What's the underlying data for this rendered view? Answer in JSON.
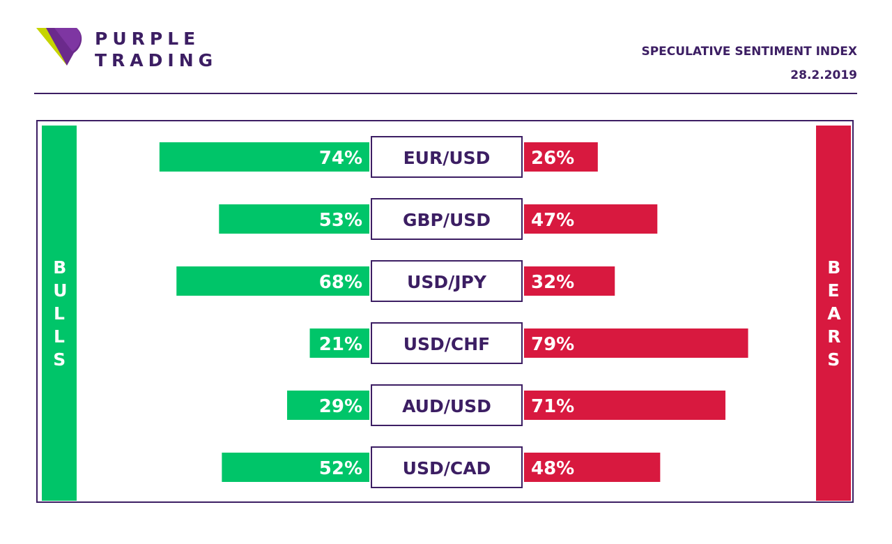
{
  "brand": {
    "line1": "PURPLE",
    "line2": "TRADING",
    "logo_icon": "purple-trading-logo-icon"
  },
  "header": {
    "title": "SPECULATIVE SENTIMENT INDEX",
    "date": "28.2.2019"
  },
  "side_labels": {
    "bulls": "BULLS",
    "bears": "BEARS"
  },
  "colors": {
    "bulls": "#00c569",
    "bears": "#d8193f",
    "accent": "#3c1e63"
  },
  "chart_data": {
    "type": "bar",
    "categories": [
      "EUR/USD",
      "GBP/USD",
      "USD/JPY",
      "USD/CHF",
      "AUD/USD",
      "USD/CAD"
    ],
    "series": [
      {
        "name": "BULLS",
        "values": [
          74,
          53,
          68,
          21,
          29,
          52
        ],
        "labels": [
          "74%",
          "53%",
          "68%",
          "21%",
          "29%",
          "52%"
        ]
      },
      {
        "name": "BEARS",
        "values": [
          26,
          47,
          32,
          79,
          71,
          48
        ],
        "labels": [
          "26%",
          "47%",
          "32%",
          "79%",
          "71%",
          "48%"
        ]
      }
    ],
    "unit": "%",
    "xlim": [
      0,
      100
    ],
    "grid": false
  }
}
